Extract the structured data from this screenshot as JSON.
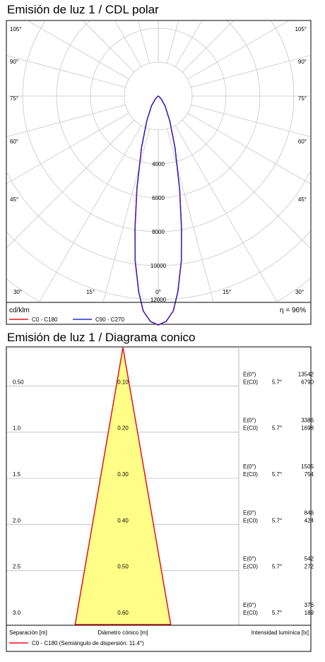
{
  "polar": {
    "title": "Emisión de luz 1 / CDL polar",
    "unit_label": "cd/klm",
    "efficiency_label": "η = 96%",
    "legend": [
      {
        "label": "C0 - C180",
        "color": "#e8101a"
      },
      {
        "label": "C90 - C270",
        "color": "#2a2acc"
      }
    ],
    "angle_labels": [
      "105°",
      "90°",
      "75°",
      "60°",
      "45°",
      "30°",
      "15°",
      "0°"
    ],
    "radial_labels": [
      "4000",
      "6000",
      "8000",
      "10000",
      "12000"
    ]
  },
  "cone": {
    "title": "Emisión de luz 1 / Diagrama conico",
    "footer": {
      "separation_label": "Separación [m]",
      "diameter_label": "Diámetro cónico [m]",
      "illuminance_label": "Intensidad lumínica [lx]",
      "legend_label": "C0 - C180 (Semiángulo de dispersión: 11.4°)",
      "legend_color": "#e8101a"
    },
    "cone_fill": "#ffff88",
    "cone_stroke": "#e8101a"
  },
  "chart_data": [
    {
      "type": "polar",
      "title": "Emisión de luz 1 / CDL polar",
      "unit": "cd/klm",
      "radial_ticks": [
        4000,
        6000,
        8000,
        10000,
        12000
      ],
      "angle_ticks_deg": [
        0,
        15,
        30,
        45,
        60,
        75,
        90,
        105
      ],
      "series": [
        {
          "name": "C0 - C180",
          "color": "#e8101a",
          "points": [
            [
              0,
              13500
            ],
            [
              2,
              13300
            ],
            [
              4,
              12700
            ],
            [
              5.7,
              11600
            ],
            [
              8,
              9800
            ],
            [
              10,
              7900
            ],
            [
              13,
              5600
            ],
            [
              18,
              3200
            ],
            [
              25,
              1600
            ],
            [
              35,
              700
            ],
            [
              45,
              250
            ],
            [
              55,
              60
            ],
            [
              65,
              0
            ]
          ]
        },
        {
          "name": "C90 - C270",
          "color": "#2a2acc",
          "points": [
            [
              0,
              13500
            ],
            [
              2,
              13300
            ],
            [
              4,
              12700
            ],
            [
              5.7,
              11600
            ],
            [
              8,
              9800
            ],
            [
              10,
              7900
            ],
            [
              13,
              5600
            ],
            [
              18,
              3200
            ],
            [
              25,
              1600
            ],
            [
              35,
              700
            ],
            [
              45,
              250
            ],
            [
              55,
              60
            ],
            [
              65,
              0
            ]
          ]
        }
      ],
      "efficiency": "η = 96%"
    },
    {
      "type": "table",
      "title": "Emisión de luz 1 / Diagrama conico",
      "half_angle_deg": 11.4,
      "rows": [
        {
          "separation": "0.50",
          "diameter": "0.10",
          "e0_label": "E(0°)",
          "e0": "13542",
          "ec0_label": "E(C0)",
          "angle": "5.7°",
          "ec0": "6790"
        },
        {
          "separation": "1.0",
          "diameter": "0.20",
          "e0_label": "E(0°)",
          "e0": "3386",
          "ec0_label": "E(C0)",
          "angle": "5.7°",
          "ec0": "1698"
        },
        {
          "separation": "1.5",
          "diameter": "0.30",
          "e0_label": "E(0°)",
          "e0": "1505",
          "ec0_label": "E(C0)",
          "angle": "5.7°",
          "ec0": "754"
        },
        {
          "separation": "2.0",
          "diameter": "0.40",
          "e0_label": "E(0°)",
          "e0": "846",
          "ec0_label": "E(C0)",
          "angle": "5.7°",
          "ec0": "424"
        },
        {
          "separation": "2.5",
          "diameter": "0.50",
          "e0_label": "E(0°)",
          "e0": "542",
          "ec0_label": "E(C0)",
          "angle": "5.7°",
          "ec0": "272"
        },
        {
          "separation": "3.0",
          "diameter": "0.60",
          "e0_label": "E(0°)",
          "e0": "376",
          "ec0_label": "E(C0)",
          "angle": "5.7°",
          "ec0": "189"
        }
      ]
    }
  ]
}
